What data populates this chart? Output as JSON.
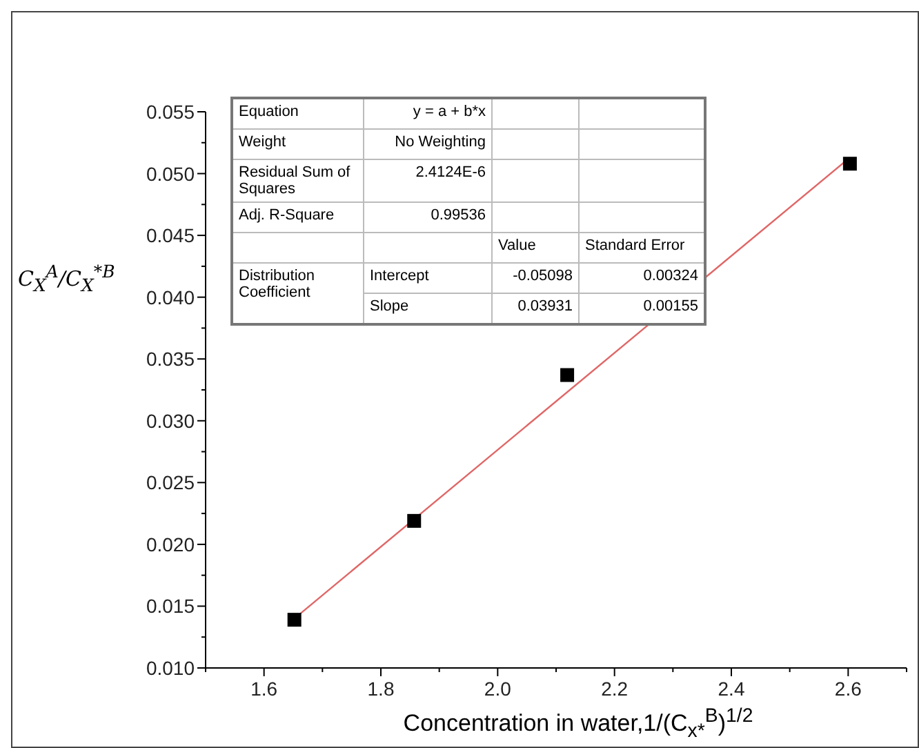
{
  "chart_data": {
    "type": "scatter",
    "xlabel": "Concentration in water,1/(C$_{x*}$$^{B}$)$^{1/2}$",
    "ylabel": "C$_{X}$$^{A}$/C$_{X}$$^{*B}$",
    "xlim": [
      1.5,
      2.7
    ],
    "xticks": [
      {
        "value": 1.5,
        "label": null
      },
      1.6,
      {
        "value": 1.7,
        "label": null
      },
      1.8,
      {
        "value": 1.9,
        "label": null
      },
      {
        "value": 2.0,
        "label": "2.0"
      },
      {
        "value": 2.1,
        "label": null
      },
      2.2,
      {
        "value": 2.3,
        "label": null
      },
      2.4,
      {
        "value": 2.5,
        "label": null
      },
      2.6,
      {
        "value": 2.7,
        "label": null
      }
    ],
    "ylim": [
      0.01,
      0.055
    ],
    "yticks": [
      {
        "value": 0.01,
        "label": "0.010"
      },
      {
        "value": 0.0125,
        "label": null
      },
      0.015,
      {
        "value": 0.0175,
        "label": null
      },
      {
        "value": 0.02,
        "label": "0.020"
      },
      {
        "value": 0.0225,
        "label": null
      },
      0.025,
      {
        "value": 0.0275,
        "label": null
      },
      {
        "value": 0.03,
        "label": "0.030"
      },
      {
        "value": 0.0325,
        "label": null
      },
      0.035,
      {
        "value": 0.0375,
        "label": null
      },
      {
        "value": 0.04,
        "label": "0.040"
      },
      {
        "value": 0.0425,
        "label": null
      },
      0.045,
      {
        "value": 0.0475,
        "label": null
      },
      {
        "value": 0.05,
        "label": "0.050"
      },
      {
        "value": 0.0525,
        "label": null
      },
      0.055
    ],
    "grid": false,
    "series": [
      {
        "marker": "square",
        "color": "#000000",
        "x": [
          1.652,
          1.857,
          2.119,
          2.603
        ],
        "values": [
          0.0139,
          0.0219,
          0.0337,
          0.0508
        ]
      },
      {
        "type": "line",
        "color": "#e06666",
        "x": [
          1.652,
          2.603
        ],
        "values": [
          0.014,
          0.0513
        ]
      }
    ],
    "annotations": [
      "Equation",
      "y = a + b*x",
      "Weight",
      "No Weighting",
      "Residual Sum of Squares",
      "2.4124E-6",
      "Adj. R-Square",
      "0.99536",
      "Value",
      "Standard Error",
      "Distribution Coefficient",
      "Intercept",
      "-0.05098",
      "0.00324",
      "Slope",
      "0.03931",
      "0.00155"
    ]
  }
}
